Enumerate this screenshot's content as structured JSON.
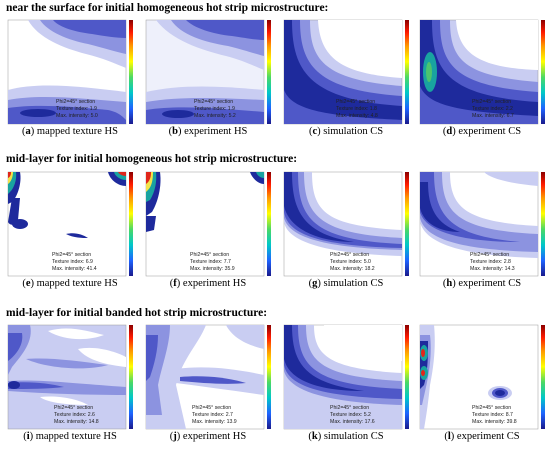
{
  "sections": [
    {
      "title": "near the surface for initial homogeneous hot strip microstructure:",
      "panels": [
        {
          "letter": "a",
          "caption": "mapped texture HS",
          "section_label": "Phi2=45° section",
          "texture_index": "Texture index: 1.9",
          "max_intensity": "Max. intensity: 5.0"
        },
        {
          "letter": "b",
          "caption": "experiment HS",
          "section_label": "Phi2=45° section",
          "texture_index": "Texture index: 1.9",
          "max_intensity": "Max. intensity: 5.2"
        },
        {
          "letter": "c",
          "caption": "simulation CS",
          "section_label": "Phi2=45° section",
          "texture_index": "Texture index: 1.8",
          "max_intensity": "Max. intensity: 4.8"
        },
        {
          "letter": "d",
          "caption": "experiment CS",
          "section_label": "Phi2=45° section",
          "texture_index": "Texture index: 2.2",
          "max_intensity": "Max. intensity: 6.7"
        }
      ]
    },
    {
      "title": "mid-layer for initial homogeneous hot strip microstructure:",
      "panels": [
        {
          "letter": "e",
          "caption": "mapped texture HS",
          "section_label": "Phi2=45° section",
          "texture_index": "Texture index: 6.9",
          "max_intensity": "Max. intensity: 41.4"
        },
        {
          "letter": "f",
          "caption": "experiment HS",
          "section_label": "Phi2=45° section",
          "texture_index": "Texture index: 7.7",
          "max_intensity": "Max. intensity: 35.9"
        },
        {
          "letter": "g",
          "caption": "simulation CS",
          "section_label": "Phi2=45° section",
          "texture_index": "Texture index: 5.0",
          "max_intensity": "Max. intensity: 18.2"
        },
        {
          "letter": "h",
          "caption": "experiment CS",
          "section_label": "Phi2=45° section",
          "texture_index": "Texture index: 2.8",
          "max_intensity": "Max. intensity: 14.3"
        }
      ]
    },
    {
      "title": "mid-layer for initial banded hot strip microstructure:",
      "panels": [
        {
          "letter": "i",
          "caption": "mapped texture HS",
          "section_label": "Phi2=45° section",
          "texture_index": "Texture index: 2.6",
          "max_intensity": "Max. intensity: 14.8"
        },
        {
          "letter": "j",
          "caption": "experiment HS",
          "section_label": "Phi2=45° section",
          "texture_index": "Texture index: 2.7",
          "max_intensity": "Max. intensity: 13.9"
        },
        {
          "letter": "k",
          "caption": "simulation CS",
          "section_label": "Phi2=45° section",
          "texture_index": "Texture index: 5.2",
          "max_intensity": "Max. intensity: 17.6"
        },
        {
          "letter": "l",
          "caption": "experiment CS",
          "section_label": "Phi2=45° section",
          "texture_index": "Texture index: 8.7",
          "max_intensity": "Max. intensity: 39.8"
        }
      ]
    }
  ],
  "palette": {
    "level1": "#c9cdf2",
    "level2": "#8c93e0",
    "level3": "#4f58c8",
    "level4": "#1e2a9c",
    "teal": "#19a3a0",
    "green": "#4cc46e",
    "yellow": "#f2e34a",
    "red": "#e0261b",
    "dark_red": "#8b0000"
  }
}
